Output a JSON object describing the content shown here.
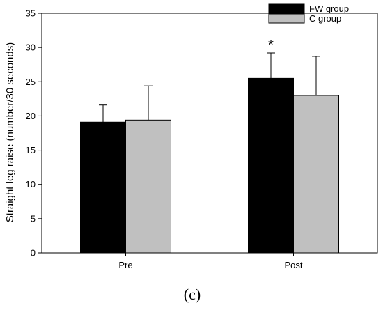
{
  "chart_data": {
    "type": "bar",
    "categories": [
      "Pre",
      "Post"
    ],
    "series": [
      {
        "name": "FW group",
        "color": "#000000",
        "values": [
          19.1,
          25.5
        ],
        "errors": [
          2.5,
          3.7
        ]
      },
      {
        "name": "C group",
        "color": "#c0c0c0",
        "values": [
          19.4,
          23.0
        ],
        "errors": [
          5.0,
          5.7
        ]
      }
    ],
    "ylabel": "Straight leg raise (number/30 seconds)",
    "xlabel": "",
    "ylim": [
      0,
      35
    ],
    "yticks": [
      0,
      5,
      10,
      15,
      20,
      25,
      30,
      35
    ],
    "annotations": [
      {
        "text": "*",
        "category": "Post",
        "series": "FW group"
      }
    ],
    "legend_position": "top-right",
    "grid": false
  },
  "panel_label": "(c)"
}
